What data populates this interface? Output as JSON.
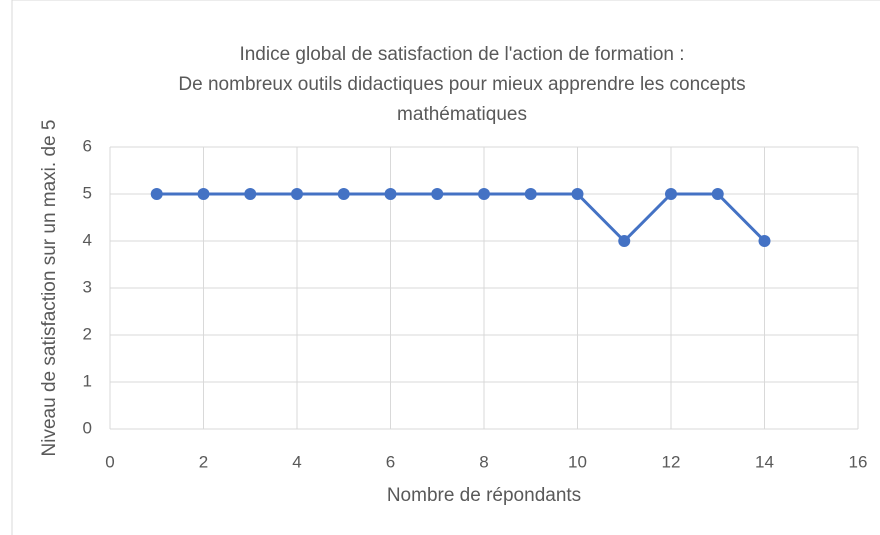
{
  "chart_data": {
    "type": "line",
    "title": [
      "Indice global de satisfaction de l'action de formation :",
      "De nombreux outils didactiques pour mieux apprendre les concepts",
      "mathématiques"
    ],
    "x_label": "Nombre de répondants",
    "y_label": "Niveau de satisfaction sur un maxi. de 5",
    "x": [
      1,
      2,
      3,
      4,
      5,
      6,
      7,
      8,
      9,
      10,
      11,
      12,
      13,
      14
    ],
    "series": [
      {
        "color": "#4472c4",
        "values": [
          5,
          5,
          5,
          5,
          5,
          5,
          5,
          5,
          5,
          5,
          4,
          5,
          5,
          4
        ]
      }
    ],
    "xlim": [
      0,
      16
    ],
    "xticks": [
      0,
      2,
      4,
      6,
      8,
      10,
      12,
      14,
      16
    ],
    "ylim": [
      0,
      6
    ],
    "yticks": [
      0,
      1,
      2,
      3,
      4,
      5,
      6
    ],
    "grid": true
  }
}
